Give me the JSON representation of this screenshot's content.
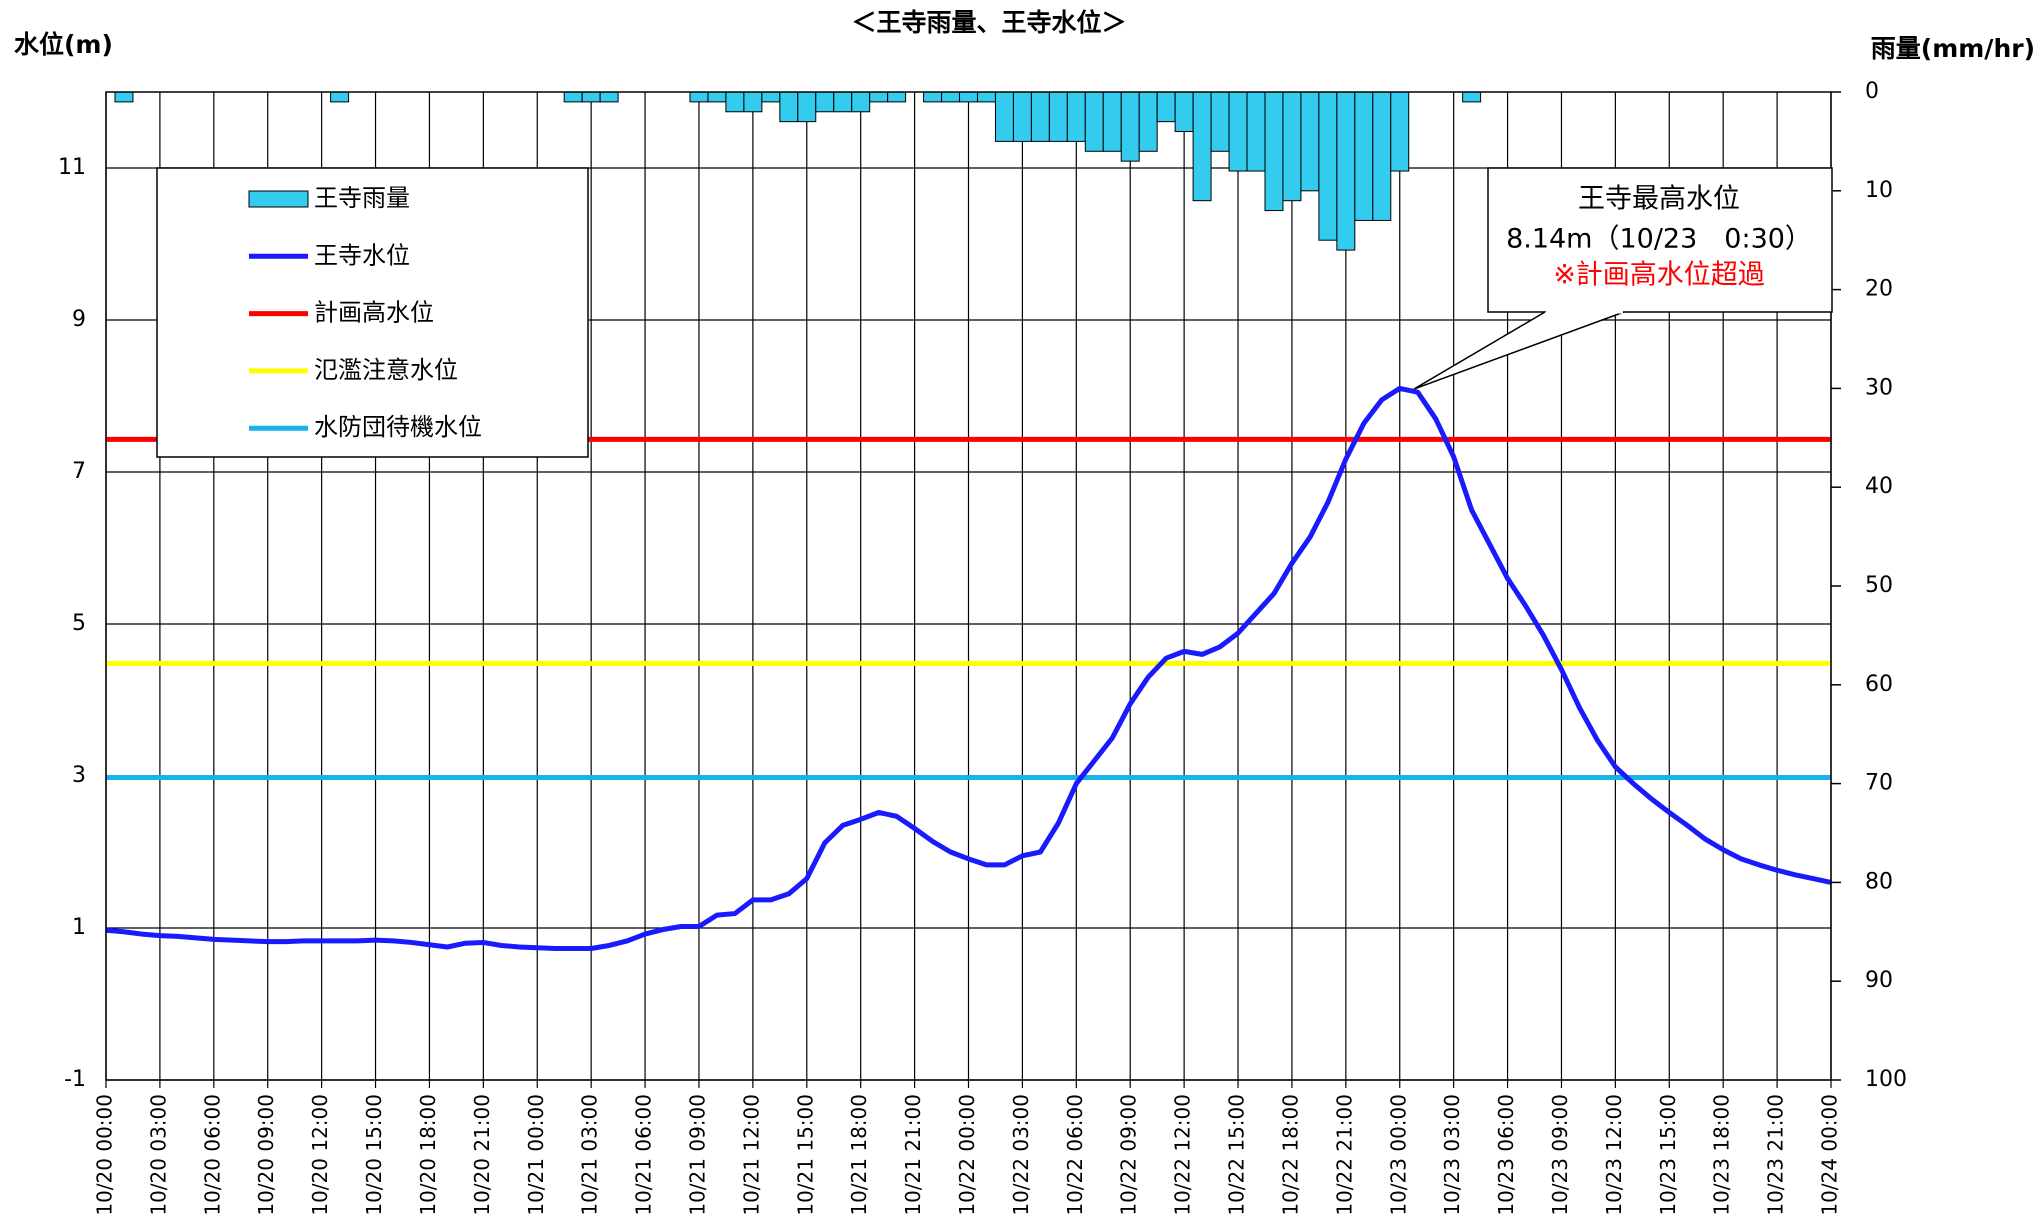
{
  "chart_data": {
    "type": "bar_line",
    "title": "＜王寺雨量、王寺水位＞",
    "y_label": "水位(m)",
    "y2_label": "雨量(mm/hr)",
    "categories": [
      "10/20 00:00",
      null,
      null,
      "10/20 03:00",
      null,
      null,
      "10/20 06:00",
      null,
      null,
      "10/20 09:00",
      null,
      null,
      "10/20 12:00",
      null,
      null,
      "10/20 15:00",
      null,
      null,
      "10/20 18:00",
      null,
      null,
      "10/20 21:00",
      null,
      null,
      "10/21 00:00",
      null,
      null,
      "10/21 03:00",
      null,
      null,
      "10/21 06:00",
      null,
      null,
      "10/21 09:00",
      null,
      null,
      "10/21 12:00",
      null,
      null,
      "10/21 15:00",
      null,
      null,
      "10/21 18:00",
      null,
      null,
      "10/21 21:00",
      null,
      null,
      "10/22 00:00",
      null,
      null,
      "10/22 03:00",
      null,
      null,
      "10/22 06:00",
      null,
      null,
      "10/22 09:00",
      null,
      null,
      "10/22 12:00",
      null,
      null,
      "10/22 15:00",
      null,
      null,
      "10/22 18:00",
      null,
      null,
      "10/22 21:00",
      null,
      null,
      "10/23 00:00",
      null,
      null,
      "10/23 03:00",
      null,
      null,
      "10/23 06:00",
      null,
      null,
      "10/23 09:00",
      null,
      null,
      "10/23 12:00",
      null,
      null,
      "10/23 15:00",
      null,
      null,
      "10/23 18:00",
      null,
      null,
      "10/23 21:00",
      null,
      null,
      "10/24 00:00"
    ],
    "series": [
      {
        "name": "王寺雨量",
        "type": "bar",
        "axis": "y2",
        "color": "#33ccee",
        "values": [
          0,
          1,
          0,
          0,
          0,
          0,
          0,
          0,
          0,
          0,
          0,
          0,
          0,
          1,
          0,
          0,
          0,
          0,
          0,
          0,
          0,
          0,
          0,
          0,
          0,
          0,
          1,
          1,
          1,
          0,
          0,
          0,
          0,
          1,
          1,
          2,
          2,
          1,
          3,
          3,
          2,
          2,
          2,
          1,
          1,
          0,
          1,
          1,
          1,
          1,
          5,
          5,
          5,
          5,
          5,
          6,
          6,
          7,
          6,
          3,
          4,
          11,
          6,
          8,
          8,
          12,
          11,
          10,
          15,
          16,
          13,
          13,
          8,
          0,
          0,
          0,
          1,
          0,
          0,
          0,
          0,
          0,
          0,
          0,
          0,
          0,
          0,
          0,
          0,
          0,
          0,
          0,
          0,
          0,
          0,
          0,
          0
        ]
      },
      {
        "name": "王寺水位",
        "type": "line",
        "color": "#1a1aff",
        "values": [
          0.97,
          0.95,
          0.92,
          0.9,
          0.89,
          0.87,
          0.85,
          0.84,
          0.83,
          0.82,
          0.82,
          0.83,
          0.83,
          0.83,
          0.83,
          0.84,
          0.83,
          0.81,
          0.78,
          0.75,
          0.8,
          0.81,
          0.77,
          0.75,
          0.74,
          0.73,
          0.73,
          0.73,
          0.77,
          0.83,
          0.92,
          0.98,
          1.02,
          1.02,
          1.17,
          1.19,
          1.37,
          1.37,
          1.45,
          1.65,
          2.12,
          2.35,
          2.43,
          2.52,
          2.47,
          2.31,
          2.14,
          2.0,
          1.91,
          1.83,
          1.83,
          1.95,
          2.0,
          2.38,
          2.9,
          3.2,
          3.5,
          3.95,
          4.3,
          4.55,
          4.64,
          4.6,
          4.7,
          4.88,
          5.14,
          5.4,
          5.8,
          6.14,
          6.6,
          7.17,
          7.64,
          7.95,
          8.1,
          8.05,
          7.7,
          7.2,
          6.5,
          6.05,
          5.6,
          5.24,
          4.85,
          4.4,
          3.9,
          3.47,
          3.12,
          2.9,
          2.7,
          2.52,
          2.35,
          2.17,
          2.03,
          1.91,
          1.83,
          1.76,
          1.7,
          1.65,
          1.6
        ]
      }
    ],
    "reference_lines": [
      {
        "name": "計画高水位",
        "color": "#ff0000",
        "value": 7.43
      },
      {
        "name": "氾濫注意水位",
        "color": "#ffff00",
        "value": 4.48
      },
      {
        "name": "水防団待機水位",
        "color": "#1ab2ea",
        "value": 2.98
      }
    ],
    "ylim": [
      -1,
      12
    ],
    "yticks": [
      -1,
      1,
      3,
      5,
      7,
      9,
      11
    ],
    "y2lim": [
      0,
      100
    ],
    "y2ticks": [
      0,
      10,
      20,
      30,
      40,
      50,
      60,
      70,
      80,
      90,
      100
    ],
    "y2_inverted": true,
    "grid": true,
    "annotation": {
      "title": "王寺最高水位",
      "text": "8.14m（10/23　0:30）",
      "note": "※計画高水位超過"
    }
  }
}
